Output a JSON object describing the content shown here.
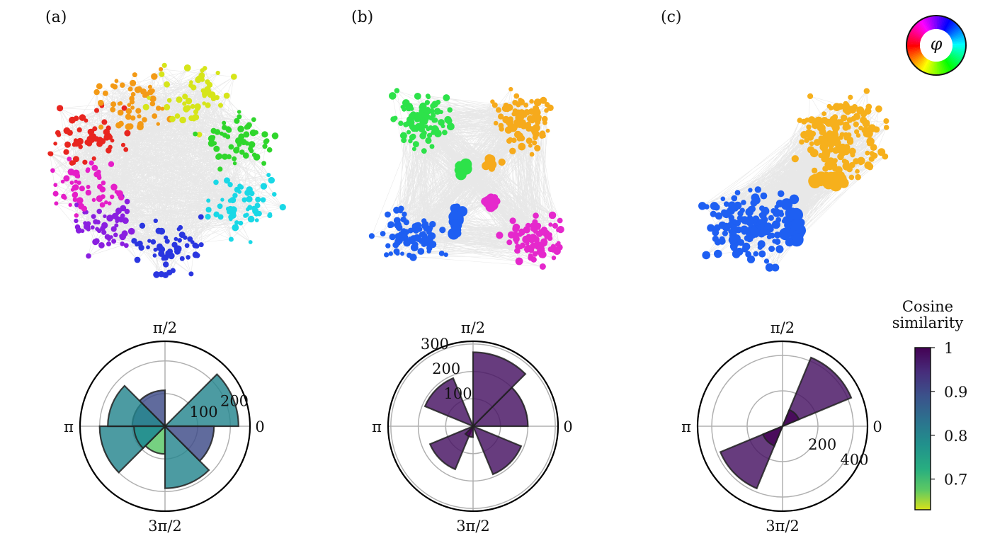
{
  "figure": {
    "panels": [
      {
        "label": "(a)"
      },
      {
        "label": "(b)"
      },
      {
        "label": "(c)"
      }
    ],
    "phase_wheel_symbol": "φ",
    "colorbar": {
      "title_line1": "Cosine",
      "title_line2": "similarity",
      "ticks": [
        "1",
        "0.9",
        "0.8",
        "0.7"
      ],
      "tick_values": [
        1.0,
        0.9,
        0.8,
        0.7
      ],
      "range": [
        0.63,
        1.0
      ],
      "colormap": "viridis_r"
    }
  },
  "chart_data": [
    {
      "type": "network",
      "panel": "(a)",
      "description_of_coloring": "node hue = phase φ",
      "node_hues": [
        "red",
        "orange",
        "yellow",
        "green",
        "cyan",
        "blue",
        "purple",
        "magenta"
      ],
      "colors": [
        "#e8251f",
        "#f39a16",
        "#d6e51a",
        "#2fd62c",
        "#19d8e6",
        "#2a36e0",
        "#8a1fe0",
        "#e51ec8"
      ]
    },
    {
      "type": "network",
      "panel": "(b)",
      "colors": [
        "#2de24a",
        "#f6aa1c",
        "#1e5ff2",
        "#e528cc"
      ]
    },
    {
      "type": "network",
      "panel": "(c)",
      "colors": [
        "#f6b01c",
        "#1e5ff2"
      ]
    },
    {
      "type": "polar_bar",
      "panel": "(a)",
      "angular_labels": {
        "right": "0",
        "top": "π/2",
        "left": "π",
        "bottom": "3π/2"
      },
      "radial_ticks": [
        100,
        200
      ],
      "radial_tick_labels": [
        "100",
        "200"
      ],
      "rmax": 260,
      "bars": [
        {
          "theta_deg": 22.5,
          "r": 225,
          "sim": 0.8
        },
        {
          "theta_deg": 67.5,
          "r": 0,
          "sim": 0.8
        },
        {
          "theta_deg": 112.5,
          "r": 110,
          "sim": 0.9
        },
        {
          "theta_deg": 157.5,
          "r": 100,
          "sim": 0.88
        },
        {
          "theta_deg": 202.5,
          "r": 200,
          "sim": 0.8
        },
        {
          "theta_deg": 247.5,
          "r": 85,
          "sim": 0.68
        },
        {
          "theta_deg": 292.5,
          "r": 190,
          "sim": 0.8
        },
        {
          "theta_deg": 337.5,
          "r": 150,
          "sim": 0.9
        },
        {
          "theta_deg": 157.5,
          "r": 175,
          "sim": 0.8
        },
        {
          "theta_deg": 202.5,
          "r": 95,
          "sim": 0.78
        }
      ]
    },
    {
      "type": "polar_bar",
      "panel": "(b)",
      "angular_labels": {
        "right": "0",
        "top": "π/2",
        "left": "π",
        "bottom": "3π/2"
      },
      "radial_ticks": [
        100,
        200,
        300
      ],
      "radial_tick_labels": [
        "100",
        "200",
        "300"
      ],
      "rmax": 310,
      "bars": [
        {
          "theta_deg": 22.5,
          "r": 200,
          "sim": 0.98
        },
        {
          "theta_deg": 67.5,
          "r": 270,
          "sim": 0.98
        },
        {
          "theta_deg": 135,
          "r": 190,
          "sim": 0.98
        },
        {
          "theta_deg": 225,
          "r": 170,
          "sim": 0.98
        },
        {
          "theta_deg": 247.5,
          "r": 40,
          "sim": 1.0
        },
        {
          "theta_deg": 315,
          "r": 190,
          "sim": 0.98
        }
      ]
    },
    {
      "type": "polar_bar",
      "panel": "(c)",
      "angular_labels": {
        "right": "0",
        "top": "π/2",
        "left": "π",
        "bottom": "3π/2"
      },
      "radial_ticks": [
        200,
        400
      ],
      "radial_tick_labels": [
        "200",
        "400"
      ],
      "rmax": 480,
      "bars": [
        {
          "theta_deg": 45,
          "r": 420,
          "sim": 0.98
        },
        {
          "theta_deg": 45,
          "r": 100,
          "sim": 1.0
        },
        {
          "theta_deg": 225,
          "r": 380,
          "sim": 0.98
        },
        {
          "theta_deg": 225,
          "r": 120,
          "sim": 1.0
        }
      ]
    }
  ]
}
